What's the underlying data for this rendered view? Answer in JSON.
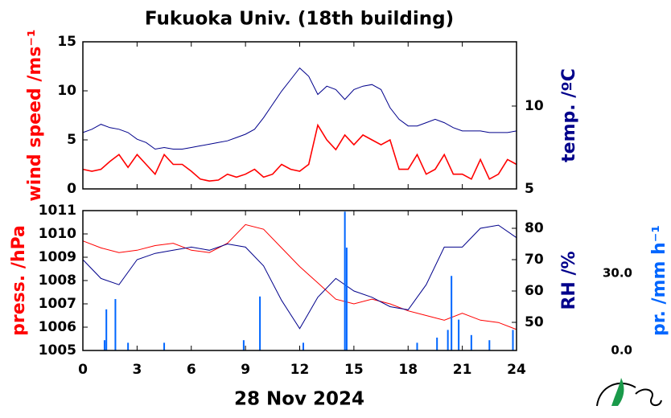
{
  "chart_data": [
    {
      "type": "line",
      "title": "Fukuoka Univ. (18th building)",
      "ylabel": "wind speed /ms⁻¹",
      "y2label": "temp. /ºC",
      "xlim": [
        0,
        24
      ],
      "xticks": [
        0,
        3,
        6,
        9,
        12,
        15,
        18,
        21,
        24
      ],
      "ylim": [
        0,
        15
      ],
      "yticks": [
        0,
        5,
        10,
        15
      ],
      "y2lim": [
        5,
        13.88
      ],
      "y2ticks": [
        5,
        10
      ],
      "ycolor": "#ff0000",
      "y2color": "#00008b",
      "x": [
        0,
        0.5,
        1,
        1.5,
        2,
        2.5,
        3,
        3.5,
        4,
        4.5,
        5,
        5.5,
        6,
        6.5,
        7,
        7.5,
        8,
        8.5,
        9,
        9.5,
        10,
        10.5,
        11,
        11.5,
        12,
        12.5,
        13,
        13.5,
        14,
        14.5,
        15,
        15.5,
        16,
        16.5,
        17,
        17.5,
        18,
        18.5,
        19,
        19.5,
        20,
        20.5,
        21,
        21.5,
        22,
        22.5,
        23,
        23.5,
        24
      ],
      "series": [
        {
          "color": "#ff0000",
          "values": [
            2,
            1.8,
            2,
            2.8,
            3.5,
            2.2,
            3.5,
            2.5,
            1.5,
            3.5,
            2.5,
            2.5,
            1.8,
            1,
            0.8,
            0.9,
            1.5,
            1.2,
            1.5,
            2,
            1.2,
            1.5,
            2.5,
            2,
            1.8,
            2.5,
            6.5,
            5,
            4,
            5.5,
            4.5,
            5.5,
            5,
            4.5,
            5,
            2,
            2,
            3.5,
            1.5,
            2,
            3.5,
            1.5,
            1.5,
            1,
            3,
            1,
            1.5,
            3,
            2.5
          ]
        },
        {
          "color": "#00008b",
          "axis": "y2",
          "values": [
            8.4,
            8.6,
            8.9,
            8.7,
            8.6,
            8.4,
            8,
            7.8,
            7.4,
            7.5,
            7.4,
            7.4,
            7.5,
            7.6,
            7.7,
            7.8,
            7.9,
            8.1,
            8.3,
            8.6,
            9.3,
            10.1,
            10.9,
            11.6,
            12.3,
            11.8,
            10.7,
            11.2,
            11,
            10.4,
            11,
            11.2,
            11.3,
            11,
            9.9,
            9.2,
            8.8,
            8.8,
            9,
            9.2,
            9,
            8.7,
            8.5,
            8.5,
            8.5,
            8.4,
            8.4,
            8.4,
            8.5
          ]
        }
      ]
    },
    {
      "type": "line",
      "xlabel": "28 Nov 2024",
      "ylabel": "press. /hPa",
      "y2label": "RH /%",
      "y3label": "pr. /mm h⁻¹",
      "xlim": [
        0,
        24
      ],
      "xticks": [
        0,
        3,
        6,
        9,
        12,
        15,
        18,
        21,
        24
      ],
      "ylim": [
        1005,
        1011
      ],
      "yticks": [
        1005,
        1006,
        1007,
        1008,
        1009,
        1010,
        1011
      ],
      "y2lim": [
        41.03,
        85.64
      ],
      "y2ticks": [
        50,
        60,
        70,
        80
      ],
      "y3lim": [
        0,
        54.4
      ],
      "y3ticks": [
        {
          "value": 0,
          "label": "0.0"
        },
        {
          "value": 30,
          "label": "30.0"
        }
      ],
      "ycolor": "#ff0000",
      "y2color": "#00008b",
      "y3color": "#0066ff",
      "x": [
        0,
        1,
        2,
        3,
        4,
        5,
        6,
        7,
        8,
        9,
        10,
        11,
        12,
        13,
        14,
        15,
        16,
        17,
        18,
        19,
        20,
        21,
        22,
        23,
        24
      ],
      "series": [
        {
          "color": "#ff0000",
          "values": [
            1009.7,
            1009.4,
            1009.2,
            1009.3,
            1009.5,
            1009.6,
            1009.3,
            1009.2,
            1009.6,
            1010.4,
            1010.2,
            1009.4,
            1008.6,
            1007.9,
            1007.2,
            1007.0,
            1007.2,
            1007.0,
            1006.7,
            1006.5,
            1006.3,
            1006.6,
            1006.3,
            1006.2,
            1005.9
          ]
        },
        {
          "color": "#00008b",
          "axis": "y2",
          "values": [
            70,
            64,
            62,
            70,
            72,
            73,
            74,
            73,
            75,
            74,
            68,
            57,
            48,
            58,
            64,
            60,
            58,
            55,
            54,
            62,
            74,
            74,
            80,
            81,
            77
          ]
        },
        {
          "type": "bar",
          "color": "#0066ff",
          "axis": "y3",
          "x": [
            1.2,
            1.3,
            1.8,
            2.5,
            4.5,
            8.9,
            9.8,
            12.2,
            14.5,
            14.6,
            18.5,
            19.6,
            20.2,
            20.4,
            20.8,
            21.5,
            22.5,
            23.8
          ],
          "values": [
            4,
            16,
            20,
            3,
            3,
            4,
            21,
            3,
            54,
            40,
            3,
            5,
            8,
            29,
            12,
            6,
            4,
            8
          ]
        }
      ]
    }
  ]
}
